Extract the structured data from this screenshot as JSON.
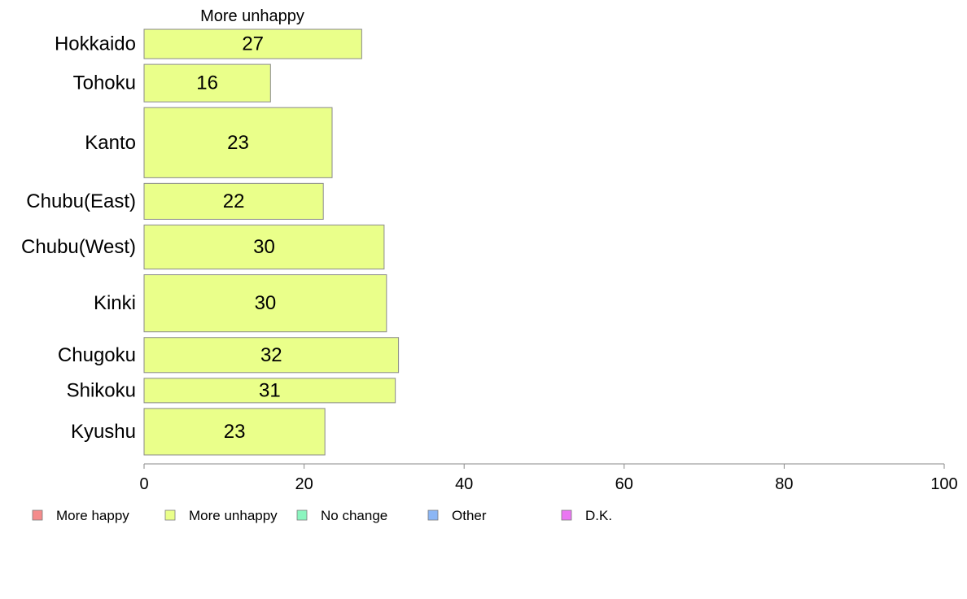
{
  "chart_data": {
    "type": "bar",
    "orientation": "horizontal",
    "title": "More unhappy",
    "categories": [
      "Hokkaido",
      "Tohoku",
      "Kanto",
      "Chubu(East)",
      "Chubu(West)",
      "Kinki",
      "Chugoku",
      "Shikoku",
      "Kyushu"
    ],
    "relative_bar_thickness": [
      36,
      46,
      86,
      44,
      54,
      70,
      43,
      30,
      57
    ],
    "series": [
      {
        "name": "More unhappy",
        "values": [
          27.2,
          15.8,
          23.5,
          22.4,
          30.0,
          30.3,
          31.8,
          31.4,
          22.6
        ],
        "labels": [
          "27",
          "16",
          "23",
          "22",
          "30",
          "30",
          "32",
          "31",
          "23"
        ]
      }
    ],
    "xlim": [
      0,
      100
    ],
    "xticks": [
      0,
      20,
      40,
      60,
      80,
      100
    ],
    "grid": false,
    "legend_position": "bottom",
    "legend": [
      {
        "label": "More happy",
        "color": "#f48b8b"
      },
      {
        "label": "More unhappy",
        "color": "#eaff8a"
      },
      {
        "label": "No change",
        "color": "#8bf5bf"
      },
      {
        "label": "Other",
        "color": "#8bb6f5"
      },
      {
        "label": "D.K.",
        "color": "#ea77f2"
      }
    ],
    "bar_color": "#eaff8a"
  }
}
